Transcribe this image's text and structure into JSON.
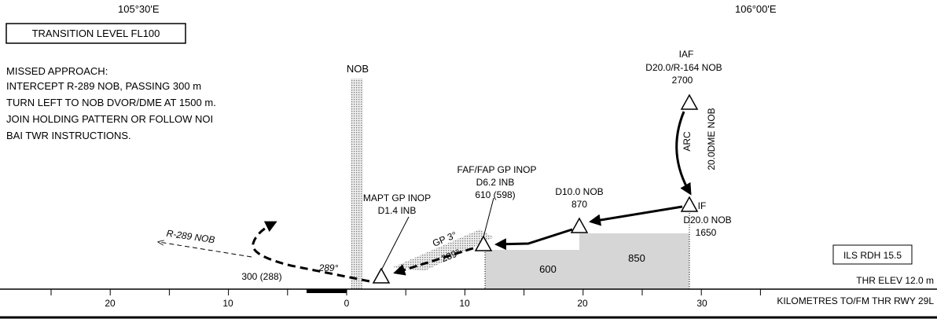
{
  "header": {
    "lon_left": "105°30'E",
    "lon_right": "106°00'E",
    "transition_level": "TRANSITION LEVEL FL100"
  },
  "missed_approach": [
    "MISSED APPROACH:",
    "INTERCEPT R-289 NOB, PASSING 300 m",
    "TURN LEFT TO NOB DVOR/DME AT 1500 m.",
    "JOIN HOLDING PATTERN OR FOLLOW NOI",
    "BAI TWR INSTRUCTIONS."
  ],
  "nob": "NOB",
  "fixes": {
    "iaf": [
      "IAF",
      "D20.0/R-164 NOB",
      "2700"
    ],
    "arc": [
      "ARC",
      "20.0DME NOB"
    ],
    "if": [
      "IF",
      "D20.0 NOB",
      "1650"
    ],
    "d10": [
      "D10.0 NOB",
      "870"
    ],
    "faf": [
      "FAF/FAP GP INOP",
      "D6.2 INB",
      "610 (598)"
    ],
    "mapt": [
      "MAPT GP INOP",
      "D1.4 INB"
    ]
  },
  "labels": {
    "gp": "GP 3°",
    "course_gp": "289°",
    "course_missed": "289°",
    "missed_alt": "300 (288)",
    "radial": "R-289 NOB"
  },
  "terrain": [
    "600",
    "850"
  ],
  "notes": {
    "rdh": "ILS RDH  15.5",
    "thr_elev": "THR ELEV 12.0 m",
    "scale_title": "KILOMETRES TO/FM THR RWY 29L"
  },
  "scale": [
    "20",
    "10",
    "0",
    "10",
    "20",
    "30"
  ]
}
